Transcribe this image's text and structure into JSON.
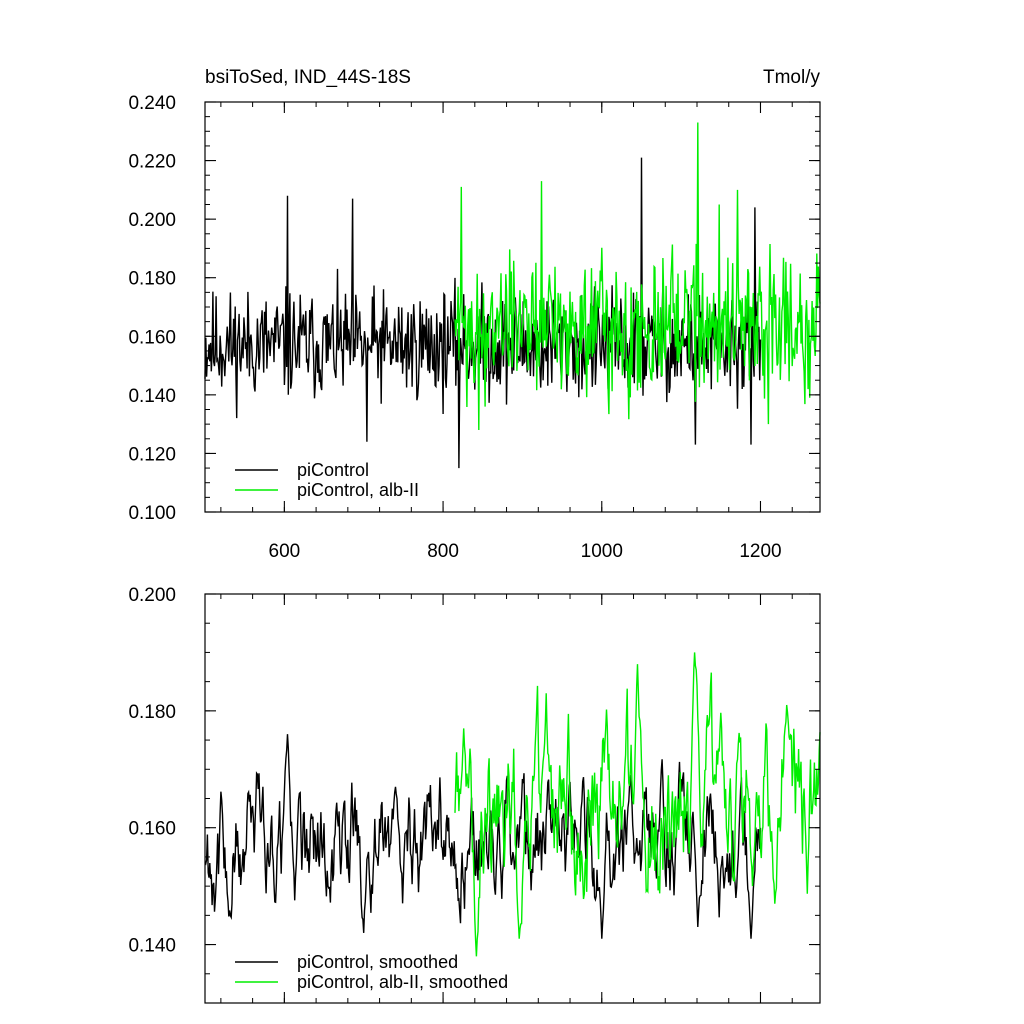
{
  "chart_data": [
    {
      "type": "line",
      "title": "bsiToSed, IND_44S-18S",
      "units": "Tmol/y",
      "xlim": [
        500,
        1275
      ],
      "ylim": [
        0.1,
        0.24
      ],
      "x_ticks": [
        "600",
        "800",
        "1000",
        "1200"
      ],
      "x_tick_values": [
        600,
        800,
        1000,
        1200
      ],
      "y_ticks": [
        "0.100",
        "0.120",
        "0.140",
        "0.160",
        "0.180",
        "0.200",
        "0.220",
        "0.240"
      ],
      "y_tick_values": [
        0.1,
        0.12,
        0.14,
        0.16,
        0.18,
        0.2,
        0.22,
        0.24
      ],
      "legend_position": "bottom-left",
      "series": [
        {
          "name": "piControl",
          "color": "#000000",
          "x_range": [
            500,
            1200
          ],
          "mean": 0.157,
          "spread": 0.013,
          "peaks": [
            [
              604,
              0.208
            ],
            [
              686,
              0.207
            ],
            [
              1050,
              0.221
            ],
            [
              1193,
              0.204
            ]
          ],
          "troughs": [
            [
              820,
              0.115
            ],
            [
              1118,
              0.123
            ],
            [
              1188,
              0.123
            ],
            [
              704,
              0.124
            ]
          ]
        },
        {
          "name": "piControl, alb-II",
          "color": "#00ee00",
          "x_range": [
            815,
            1275
          ],
          "mean": 0.164,
          "spread": 0.017,
          "peaks": [
            [
              823,
              0.211
            ],
            [
              924,
              0.213
            ],
            [
              1121,
              0.233
            ],
            [
              1171,
              0.21
            ],
            [
              1148,
              0.205
            ]
          ],
          "troughs": [
            [
              845,
              0.128
            ],
            [
              1210,
              0.13
            ],
            [
              1262,
              0.139
            ]
          ]
        }
      ]
    },
    {
      "type": "line",
      "title": "",
      "ylim": [
        0.13,
        0.2
      ],
      "xlim": [
        500,
        1275
      ],
      "y_ticks": [
        "0.140",
        "0.160",
        "0.180",
        "0.200"
      ],
      "y_tick_values": [
        0.14,
        0.16,
        0.18,
        0.2
      ],
      "x_tick_values": [
        600,
        800,
        1000,
        1200
      ],
      "legend_position": "bottom-left",
      "series": [
        {
          "name": "piControl, smoothed",
          "color": "#000000",
          "x_range": [
            500,
            1200
          ],
          "mean": 0.157,
          "spread": 0.007,
          "peaks": [
            [
              604,
              0.176
            ],
            [
              740,
              0.167
            ],
            [
              1036,
              0.169
            ],
            [
              1118,
              0.17
            ]
          ],
          "troughs": [
            [
              700,
              0.142
            ],
            [
              1121,
              0.143
            ],
            [
              1188,
              0.141
            ],
            [
              1000,
              0.141
            ]
          ]
        },
        {
          "name": "piControl, alb-II, smoothed",
          "color": "#00ee00",
          "x_range": [
            815,
            1275
          ],
          "mean": 0.164,
          "spread": 0.009,
          "peaks": [
            [
              826,
              0.177
            ],
            [
              930,
              0.183
            ],
            [
              1045,
              0.188
            ],
            [
              1117,
              0.19
            ],
            [
              1233,
              0.181
            ]
          ],
          "troughs": [
            [
              842,
              0.138
            ],
            [
              896,
              0.141
            ],
            [
              1190,
              0.15
            ],
            [
              1218,
              0.147
            ]
          ]
        }
      ]
    }
  ]
}
